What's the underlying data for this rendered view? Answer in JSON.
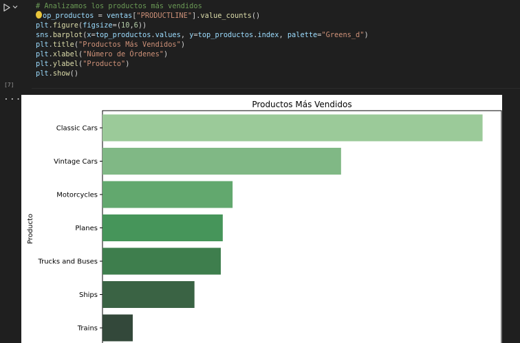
{
  "cell": {
    "execution_count": "[7]",
    "output_indicator": "...",
    "code_lines": [
      [
        {
          "t": "# Analizamos los productos más vendidos",
          "c": "comment"
        }
      ],
      [
        {
          "t": "top_productos",
          "c": "var",
          "cursor": true
        },
        {
          "t": " = ",
          "c": "op"
        },
        {
          "t": "ventas",
          "c": "var"
        },
        {
          "t": "[",
          "c": "op"
        },
        {
          "t": "\"PRODUCTLINE\"",
          "c": "str"
        },
        {
          "t": "].",
          "c": "op"
        },
        {
          "t": "value_counts",
          "c": "fn"
        },
        {
          "t": "()",
          "c": "op"
        }
      ],
      [
        {
          "t": "plt",
          "c": "var"
        },
        {
          "t": ".",
          "c": "op"
        },
        {
          "t": "figure",
          "c": "fn"
        },
        {
          "t": "(",
          "c": "op"
        },
        {
          "t": "figsize",
          "c": "var"
        },
        {
          "t": "=(",
          "c": "op"
        },
        {
          "t": "10",
          "c": "num"
        },
        {
          "t": ",",
          "c": "op"
        },
        {
          "t": "6",
          "c": "num"
        },
        {
          "t": "))",
          "c": "op"
        }
      ],
      [
        {
          "t": "sns",
          "c": "var"
        },
        {
          "t": ".",
          "c": "op"
        },
        {
          "t": "barplot",
          "c": "fn"
        },
        {
          "t": "(",
          "c": "op"
        },
        {
          "t": "x",
          "c": "var"
        },
        {
          "t": "=",
          "c": "op"
        },
        {
          "t": "top_productos",
          "c": "var"
        },
        {
          "t": ".",
          "c": "op"
        },
        {
          "t": "values",
          "c": "var"
        },
        {
          "t": ", ",
          "c": "op"
        },
        {
          "t": "y",
          "c": "var"
        },
        {
          "t": "=",
          "c": "op"
        },
        {
          "t": "top_productos",
          "c": "var"
        },
        {
          "t": ".",
          "c": "op"
        },
        {
          "t": "index",
          "c": "var"
        },
        {
          "t": ", ",
          "c": "op"
        },
        {
          "t": "palette",
          "c": "var"
        },
        {
          "t": "=",
          "c": "op"
        },
        {
          "t": "\"Greens_d\"",
          "c": "str"
        },
        {
          "t": ")",
          "c": "op"
        }
      ],
      [
        {
          "t": "plt",
          "c": "var"
        },
        {
          "t": ".",
          "c": "op"
        },
        {
          "t": "title",
          "c": "fn"
        },
        {
          "t": "(",
          "c": "op"
        },
        {
          "t": "\"Productos Más Vendidos\"",
          "c": "str"
        },
        {
          "t": ")",
          "c": "op"
        }
      ],
      [
        {
          "t": "plt",
          "c": "var"
        },
        {
          "t": ".",
          "c": "op"
        },
        {
          "t": "xlabel",
          "c": "fn"
        },
        {
          "t": "(",
          "c": "op"
        },
        {
          "t": "\"Número de Órdenes\"",
          "c": "str"
        },
        {
          "t": ")",
          "c": "op"
        }
      ],
      [
        {
          "t": "plt",
          "c": "var"
        },
        {
          "t": ".",
          "c": "op"
        },
        {
          "t": "ylabel",
          "c": "fn"
        },
        {
          "t": "(",
          "c": "op"
        },
        {
          "t": "\"Producto\"",
          "c": "str"
        },
        {
          "t": ")",
          "c": "op"
        }
      ],
      [
        {
          "t": "plt",
          "c": "var"
        },
        {
          "t": ".",
          "c": "op"
        },
        {
          "t": "show",
          "c": "fn"
        },
        {
          "t": "()",
          "c": "op"
        }
      ]
    ],
    "icons": {
      "run": "play-icon",
      "menu": "chevron-down-icon"
    }
  },
  "chart_data": {
    "type": "bar",
    "orientation": "horizontal",
    "title": "Productos Más Vendidos",
    "xlabel": "",
    "ylabel": "Producto",
    "categories": [
      "Classic Cars",
      "Vintage Cars",
      "Motorcycles",
      "Planes",
      "Trucks and Buses",
      "Ships",
      "Trains"
    ],
    "values": [
      967,
      607,
      331,
      306,
      301,
      234,
      77
    ],
    "xlim": [
      0,
      1015
    ],
    "colors": [
      "#9bca99",
      "#80b885",
      "#62a86e",
      "#46955a",
      "#3e7e4d",
      "#3a6344",
      "#33483a"
    ],
    "grid": false
  }
}
